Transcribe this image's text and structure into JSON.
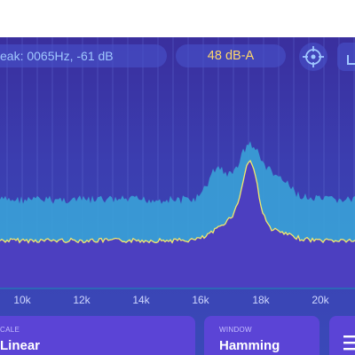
{
  "header": {
    "peak_text": "eak: 0065Hz, -61 dB",
    "level_text": "48 dB-A",
    "target_icon": "crosshair-icon",
    "corner_icon": "expand-icon"
  },
  "colors": {
    "background": "#3b3eb0",
    "fill_upper": "#3aa7d9",
    "trace": "#f5e96a",
    "accent_orange": "#f08a3c",
    "card": "#5b44d6",
    "peak_text": "#9fc7ff",
    "level_text": "#ffd86a"
  },
  "axis": {
    "ticks": [
      "10k",
      "12k",
      "14k",
      "16k",
      "18k",
      "20k"
    ]
  },
  "controls": {
    "scale": {
      "caption": "CALE",
      "value": "Linear"
    },
    "window": {
      "caption": "WINDOW",
      "value": "Hamming"
    },
    "menu_icon": "menu-icon"
  }
}
